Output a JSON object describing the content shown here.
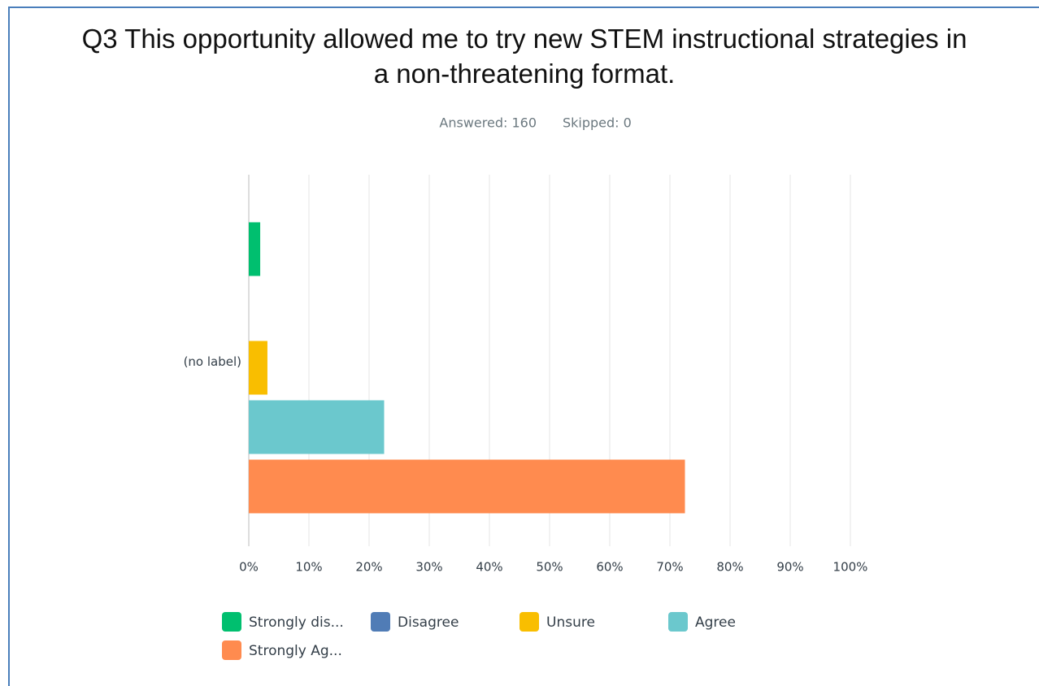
{
  "chart_data": {
    "type": "bar",
    "orientation": "horizontal",
    "title": "Q3 This opportunity allowed me to try new STEM instructional strategies in a non-threatening format.",
    "answered": "Answered: 160",
    "skipped": "Skipped: 0",
    "categories": [
      "(no label)"
    ],
    "series": [
      {
        "name": "Strongly dis...",
        "color": "#00bf6f",
        "values": [
          1.9
        ]
      },
      {
        "name": "Disagree",
        "color": "#507cb6",
        "values": [
          0
        ]
      },
      {
        "name": "Unsure",
        "color": "#f9be00",
        "values": [
          3.1
        ]
      },
      {
        "name": "Agree",
        "color": "#6bc8cd",
        "values": [
          22.5
        ]
      },
      {
        "name": "Strongly Ag...",
        "color": "#ff8b4f",
        "values": [
          72.5
        ]
      }
    ],
    "xlim": [
      0,
      100
    ],
    "xticks": [
      {
        "value": 0,
        "label": "0%"
      },
      {
        "value": 10,
        "label": "10%"
      },
      {
        "value": 20,
        "label": "20%"
      },
      {
        "value": 30,
        "label": "30%"
      },
      {
        "value": 40,
        "label": "40%"
      },
      {
        "value": 50,
        "label": "50%"
      },
      {
        "value": 60,
        "label": "60%"
      },
      {
        "value": 70,
        "label": "70%"
      },
      {
        "value": 80,
        "label": "80%"
      },
      {
        "value": 90,
        "label": "90%"
      },
      {
        "value": 100,
        "label": "100%"
      }
    ],
    "grid": true
  }
}
